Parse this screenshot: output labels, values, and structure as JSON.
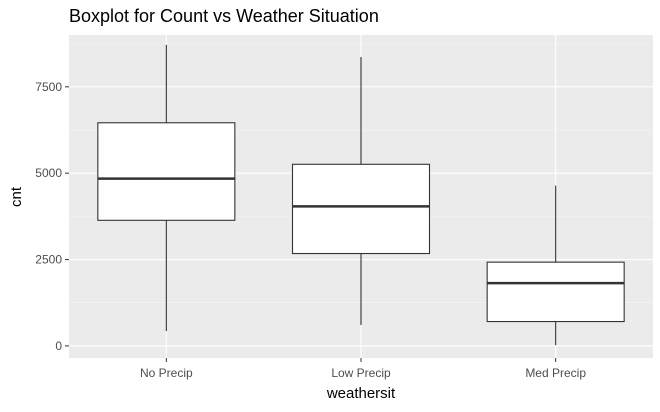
{
  "chart_data": {
    "type": "boxplot",
    "title": "Boxplot for Count vs Weather Situation",
    "xlabel": "weathersit",
    "ylabel": "cnt",
    "ylim": [
      -350,
      9000
    ],
    "yticks": [
      0,
      2500,
      5000,
      7500
    ],
    "ytick_labels": [
      "0",
      "2500",
      "5000",
      "7500"
    ],
    "grid": true,
    "categories": [
      "No Precip",
      "Low Precip",
      "Med Precip"
    ],
    "boxes": [
      {
        "category": "No Precip",
        "whisker_low": 431,
        "q1": 3636,
        "median": 4844,
        "q3": 6459,
        "whisker_high": 8714
      },
      {
        "category": "Low Precip",
        "whisker_low": 605,
        "q1": 2674,
        "median": 4039,
        "q3": 5257,
        "whisker_high": 8362
      },
      {
        "category": "Med Precip",
        "whisker_low": 22,
        "q1": 705,
        "median": 1817,
        "q3": 2424,
        "whisker_high": 4639
      }
    ],
    "colors": {
      "panel": "#ebebeb",
      "grid_major": "#ffffff",
      "box_fill": "#ffffff",
      "box_stroke": "#333333",
      "tick_text": "#4d4d4d"
    }
  }
}
